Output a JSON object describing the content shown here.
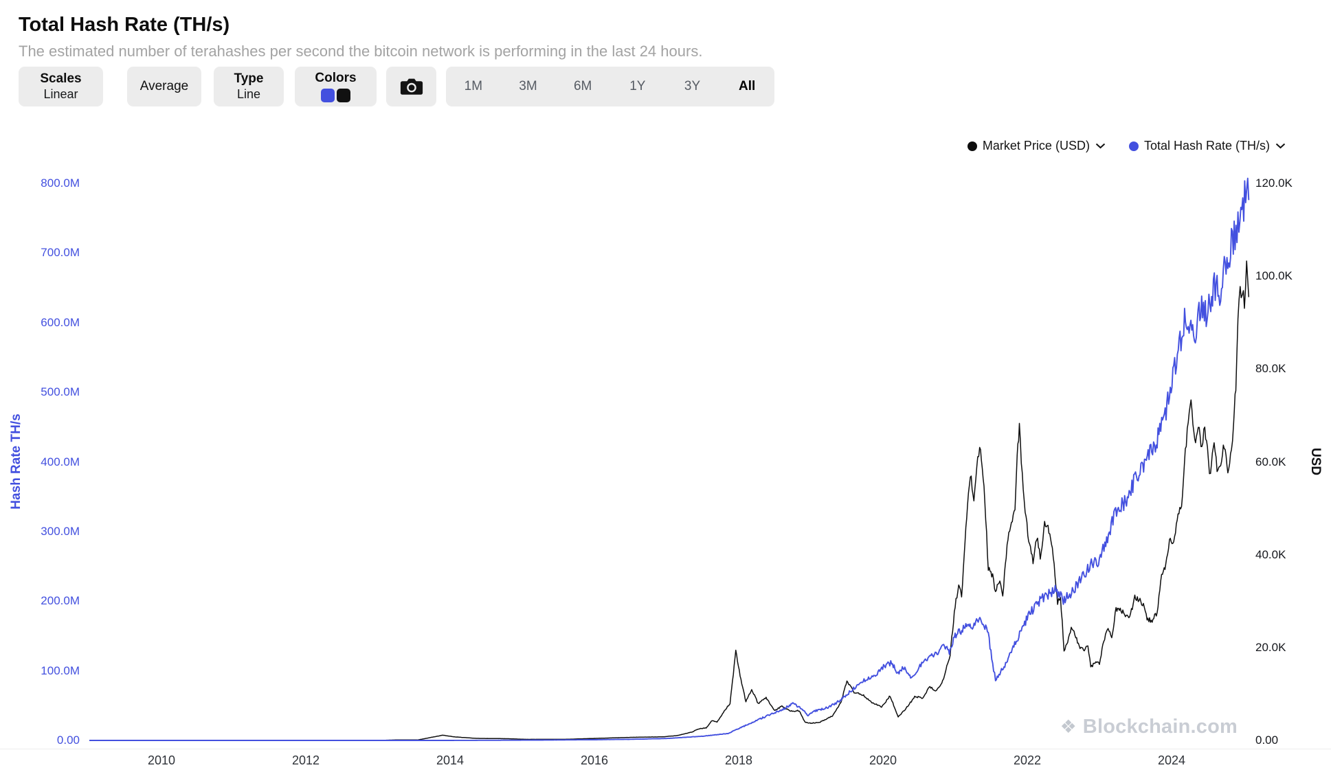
{
  "header": {
    "title": "Total Hash Rate (TH/s)",
    "subtitle": "The estimated number of terahashes per second the bitcoin network is performing in the last 24 hours."
  },
  "toolbar": {
    "scales": {
      "label": "Scales",
      "value": "Linear"
    },
    "average": {
      "label": "Average"
    },
    "type": {
      "label": "Type",
      "value": "Line"
    },
    "colors": {
      "label": "Colors",
      "swatches": [
        "#4350df",
        "#111111"
      ]
    },
    "camera": {
      "icon": "camera-icon"
    },
    "ranges": [
      {
        "label": "1M",
        "active": false
      },
      {
        "label": "3M",
        "active": false
      },
      {
        "label": "6M",
        "active": false
      },
      {
        "label": "1Y",
        "active": false
      },
      {
        "label": "3Y",
        "active": false
      },
      {
        "label": "All",
        "active": true
      }
    ]
  },
  "watermark": {
    "text": "Blockchain.com",
    "logo": "blockchain-diamond-icon"
  },
  "chart_data": {
    "type": "line",
    "title": "Total Hash Rate (TH/s)",
    "legend_position": "top-right",
    "grid": false,
    "x_axis": {
      "range": [
        2009.0,
        2025.1
      ],
      "ticks": [
        [
          "2010",
          2010
        ],
        [
          "2012",
          2012
        ],
        [
          "2014",
          2014
        ],
        [
          "2016",
          2016
        ],
        [
          "2018",
          2018
        ],
        [
          "2020",
          2020
        ],
        [
          "2022",
          2022
        ],
        [
          "2024",
          2024
        ]
      ]
    },
    "y_axis_left": {
      "label": "Hash Rate TH/s",
      "unit": "millions of TH/s",
      "range": [
        0,
        800
      ],
      "color": "#4350df",
      "ticks": [
        [
          "800.0M",
          800
        ],
        [
          "700.0M",
          700
        ],
        [
          "600.0M",
          600
        ],
        [
          "500.0M",
          500
        ],
        [
          "400.0M",
          400
        ],
        [
          "300.0M",
          300
        ],
        [
          "200.0M",
          200
        ],
        [
          "100.0M",
          100
        ],
        [
          "0.00",
          0
        ]
      ]
    },
    "y_axis_right": {
      "label": "USD",
      "unit": "USD",
      "range": [
        0,
        120000
      ],
      "ticks": [
        [
          "120.0K",
          120000
        ],
        [
          "100.0K",
          100000
        ],
        [
          "80.0K",
          80000
        ],
        [
          "60.0K",
          60000
        ],
        [
          "40.0K",
          40000
        ],
        [
          "20.0K",
          20000
        ],
        [
          "0.00",
          0
        ]
      ]
    },
    "series": [
      {
        "name": "Market Price (USD)",
        "axis": "right",
        "color": "#0d0d0d",
        "points": [
          [
            2009.0,
            0
          ],
          [
            2010.5,
            0.1
          ],
          [
            2011.45,
            30
          ],
          [
            2011.9,
            3
          ],
          [
            2012.5,
            7
          ],
          [
            2013.0,
            13
          ],
          [
            2013.3,
            120
          ],
          [
            2013.55,
            95
          ],
          [
            2013.9,
            1130
          ],
          [
            2014.05,
            780
          ],
          [
            2014.35,
            450
          ],
          [
            2014.8,
            370
          ],
          [
            2015.05,
            230
          ],
          [
            2015.6,
            240
          ],
          [
            2016.0,
            430
          ],
          [
            2016.5,
            660
          ],
          [
            2016.95,
            780
          ],
          [
            2017.15,
            1050
          ],
          [
            2017.35,
            1800
          ],
          [
            2017.45,
            2500
          ],
          [
            2017.55,
            2700
          ],
          [
            2017.63,
            4300
          ],
          [
            2017.7,
            3900
          ],
          [
            2017.8,
            6300
          ],
          [
            2017.88,
            8000
          ],
          [
            2017.96,
            19100
          ],
          [
            2018.02,
            14000
          ],
          [
            2018.1,
            8300
          ],
          [
            2018.18,
            11000
          ],
          [
            2018.27,
            7900
          ],
          [
            2018.38,
            9200
          ],
          [
            2018.5,
            6400
          ],
          [
            2018.6,
            7400
          ],
          [
            2018.72,
            6300
          ],
          [
            2018.84,
            6400
          ],
          [
            2018.92,
            3900
          ],
          [
            2019.0,
            3700
          ],
          [
            2019.12,
            3900
          ],
          [
            2019.3,
            5300
          ],
          [
            2019.42,
            8200
          ],
          [
            2019.5,
            12900
          ],
          [
            2019.6,
            10400
          ],
          [
            2019.72,
            9800
          ],
          [
            2019.85,
            8200
          ],
          [
            2019.98,
            7200
          ],
          [
            2020.1,
            9600
          ],
          [
            2020.21,
            5000
          ],
          [
            2020.32,
            6900
          ],
          [
            2020.44,
            9400
          ],
          [
            2020.55,
            9200
          ],
          [
            2020.65,
            11600
          ],
          [
            2020.74,
            10600
          ],
          [
            2020.84,
            13200
          ],
          [
            2020.93,
            18500
          ],
          [
            2021.0,
            29000
          ],
          [
            2021.05,
            33500
          ],
          [
            2021.09,
            31000
          ],
          [
            2021.16,
            48000
          ],
          [
            2021.21,
            57500
          ],
          [
            2021.26,
            52000
          ],
          [
            2021.3,
            59000
          ],
          [
            2021.34,
            63500
          ],
          [
            2021.4,
            55000
          ],
          [
            2021.46,
            37000
          ],
          [
            2021.52,
            35500
          ],
          [
            2021.56,
            32000
          ],
          [
            2021.62,
            34500
          ],
          [
            2021.66,
            31000
          ],
          [
            2021.72,
            42000
          ],
          [
            2021.78,
            47500
          ],
          [
            2021.83,
            49000
          ],
          [
            2021.86,
            62000
          ],
          [
            2021.89,
            67500
          ],
          [
            2021.93,
            57500
          ],
          [
            2021.97,
            50000
          ],
          [
            2022.02,
            43000
          ],
          [
            2022.08,
            38500
          ],
          [
            2022.13,
            44000
          ],
          [
            2022.18,
            39500
          ],
          [
            2022.24,
            46500
          ],
          [
            2022.3,
            45500
          ],
          [
            2022.36,
            39500
          ],
          [
            2022.42,
            29500
          ],
          [
            2022.46,
            31000
          ],
          [
            2022.51,
            19500
          ],
          [
            2022.56,
            21500
          ],
          [
            2022.61,
            24000
          ],
          [
            2022.66,
            23000
          ],
          [
            2022.72,
            20000
          ],
          [
            2022.79,
            19500
          ],
          [
            2022.84,
            20500
          ],
          [
            2022.88,
            15800
          ],
          [
            2022.95,
            16800
          ],
          [
            2023.0,
            16600
          ],
          [
            2023.06,
            21500
          ],
          [
            2023.12,
            24500
          ],
          [
            2023.17,
            22000
          ],
          [
            2023.23,
            28300
          ],
          [
            2023.3,
            28000
          ],
          [
            2023.36,
            27200
          ],
          [
            2023.42,
            26500
          ],
          [
            2023.49,
            30800
          ],
          [
            2023.55,
            30200
          ],
          [
            2023.61,
            29300
          ],
          [
            2023.66,
            26000
          ],
          [
            2023.73,
            25900
          ],
          [
            2023.8,
            27500
          ],
          [
            2023.85,
            34600
          ],
          [
            2023.92,
            37500
          ],
          [
            2023.97,
            42800
          ],
          [
            2024.03,
            43000
          ],
          [
            2024.09,
            48000
          ],
          [
            2024.15,
            52000
          ],
          [
            2024.19,
            62500
          ],
          [
            2024.23,
            68500
          ],
          [
            2024.27,
            73100
          ],
          [
            2024.32,
            64500
          ],
          [
            2024.37,
            67000
          ],
          [
            2024.42,
            63500
          ],
          [
            2024.46,
            67200
          ],
          [
            2024.51,
            60500
          ],
          [
            2024.54,
            56500
          ],
          [
            2024.59,
            65000
          ],
          [
            2024.63,
            58000
          ],
          [
            2024.68,
            59500
          ],
          [
            2024.73,
            63500
          ],
          [
            2024.78,
            58500
          ],
          [
            2024.83,
            62500
          ],
          [
            2024.86,
            68500
          ],
          [
            2024.89,
            76000
          ],
          [
            2024.92,
            91500
          ],
          [
            2024.95,
            98000
          ],
          [
            2024.98,
            96500
          ],
          [
            2025.01,
            94000
          ],
          [
            2025.04,
            101500
          ],
          [
            2025.07,
            95500
          ]
        ]
      },
      {
        "name": "Total Hash Rate (TH/s)",
        "axis": "left",
        "color": "#4350df",
        "points": [
          [
            2009.0,
            0
          ],
          [
            2013.0,
            0.01
          ],
          [
            2014.0,
            0.03
          ],
          [
            2015.0,
            0.35
          ],
          [
            2016.0,
            1.0
          ],
          [
            2016.5,
            1.6
          ],
          [
            2017.0,
            2.8
          ],
          [
            2017.5,
            6
          ],
          [
            2017.85,
            10
          ],
          [
            2018.0,
            17
          ],
          [
            2018.15,
            24
          ],
          [
            2018.3,
            31
          ],
          [
            2018.45,
            38
          ],
          [
            2018.6,
            44
          ],
          [
            2018.75,
            53
          ],
          [
            2018.88,
            46
          ],
          [
            2018.96,
            36
          ],
          [
            2019.05,
            42
          ],
          [
            2019.2,
            46
          ],
          [
            2019.35,
            53
          ],
          [
            2019.5,
            66
          ],
          [
            2019.65,
            80
          ],
          [
            2019.8,
            90
          ],
          [
            2019.92,
            97
          ],
          [
            2020.02,
            107
          ],
          [
            2020.12,
            112
          ],
          [
            2020.2,
            96
          ],
          [
            2020.28,
            106
          ],
          [
            2020.36,
            91
          ],
          [
            2020.45,
            97
          ],
          [
            2020.55,
            112
          ],
          [
            2020.65,
            122
          ],
          [
            2020.75,
            126
          ],
          [
            2020.83,
            134
          ],
          [
            2020.92,
            128
          ],
          [
            2021.0,
            150
          ],
          [
            2021.08,
            158
          ],
          [
            2021.16,
            166
          ],
          [
            2021.24,
            161
          ],
          [
            2021.32,
            172
          ],
          [
            2021.4,
            168
          ],
          [
            2021.46,
            152
          ],
          [
            2021.52,
            110
          ],
          [
            2021.56,
            87
          ],
          [
            2021.62,
            96
          ],
          [
            2021.7,
            110
          ],
          [
            2021.78,
            128
          ],
          [
            2021.86,
            145
          ],
          [
            2021.94,
            162
          ],
          [
            2022.0,
            176
          ],
          [
            2022.1,
            192
          ],
          [
            2022.2,
            204
          ],
          [
            2022.3,
            211
          ],
          [
            2022.4,
            216
          ],
          [
            2022.5,
            201
          ],
          [
            2022.6,
            211
          ],
          [
            2022.7,
            226
          ],
          [
            2022.8,
            241
          ],
          [
            2022.9,
            256
          ],
          [
            2023.0,
            258
          ],
          [
            2023.1,
            288
          ],
          [
            2023.2,
            320
          ],
          [
            2023.3,
            336
          ],
          [
            2023.4,
            350
          ],
          [
            2023.5,
            376
          ],
          [
            2023.6,
            392
          ],
          [
            2023.7,
            412
          ],
          [
            2023.8,
            432
          ],
          [
            2023.9,
            462
          ],
          [
            2023.97,
            498
          ],
          [
            2024.03,
            528
          ],
          [
            2024.08,
            556
          ],
          [
            2024.13,
            578
          ],
          [
            2024.18,
            602
          ],
          [
            2024.23,
            588
          ],
          [
            2024.28,
            607
          ],
          [
            2024.33,
            582
          ],
          [
            2024.38,
            616
          ],
          [
            2024.43,
            626
          ],
          [
            2024.48,
            611
          ],
          [
            2024.53,
            632
          ],
          [
            2024.58,
            647
          ],
          [
            2024.63,
            656
          ],
          [
            2024.68,
            642
          ],
          [
            2024.73,
            672
          ],
          [
            2024.78,
            692
          ],
          [
            2024.83,
            712
          ],
          [
            2024.88,
            727
          ],
          [
            2024.92,
            742
          ],
          [
            2024.96,
            762
          ],
          [
            2025.0,
            772
          ],
          [
            2025.04,
            788
          ],
          [
            2025.07,
            776
          ]
        ]
      }
    ]
  }
}
